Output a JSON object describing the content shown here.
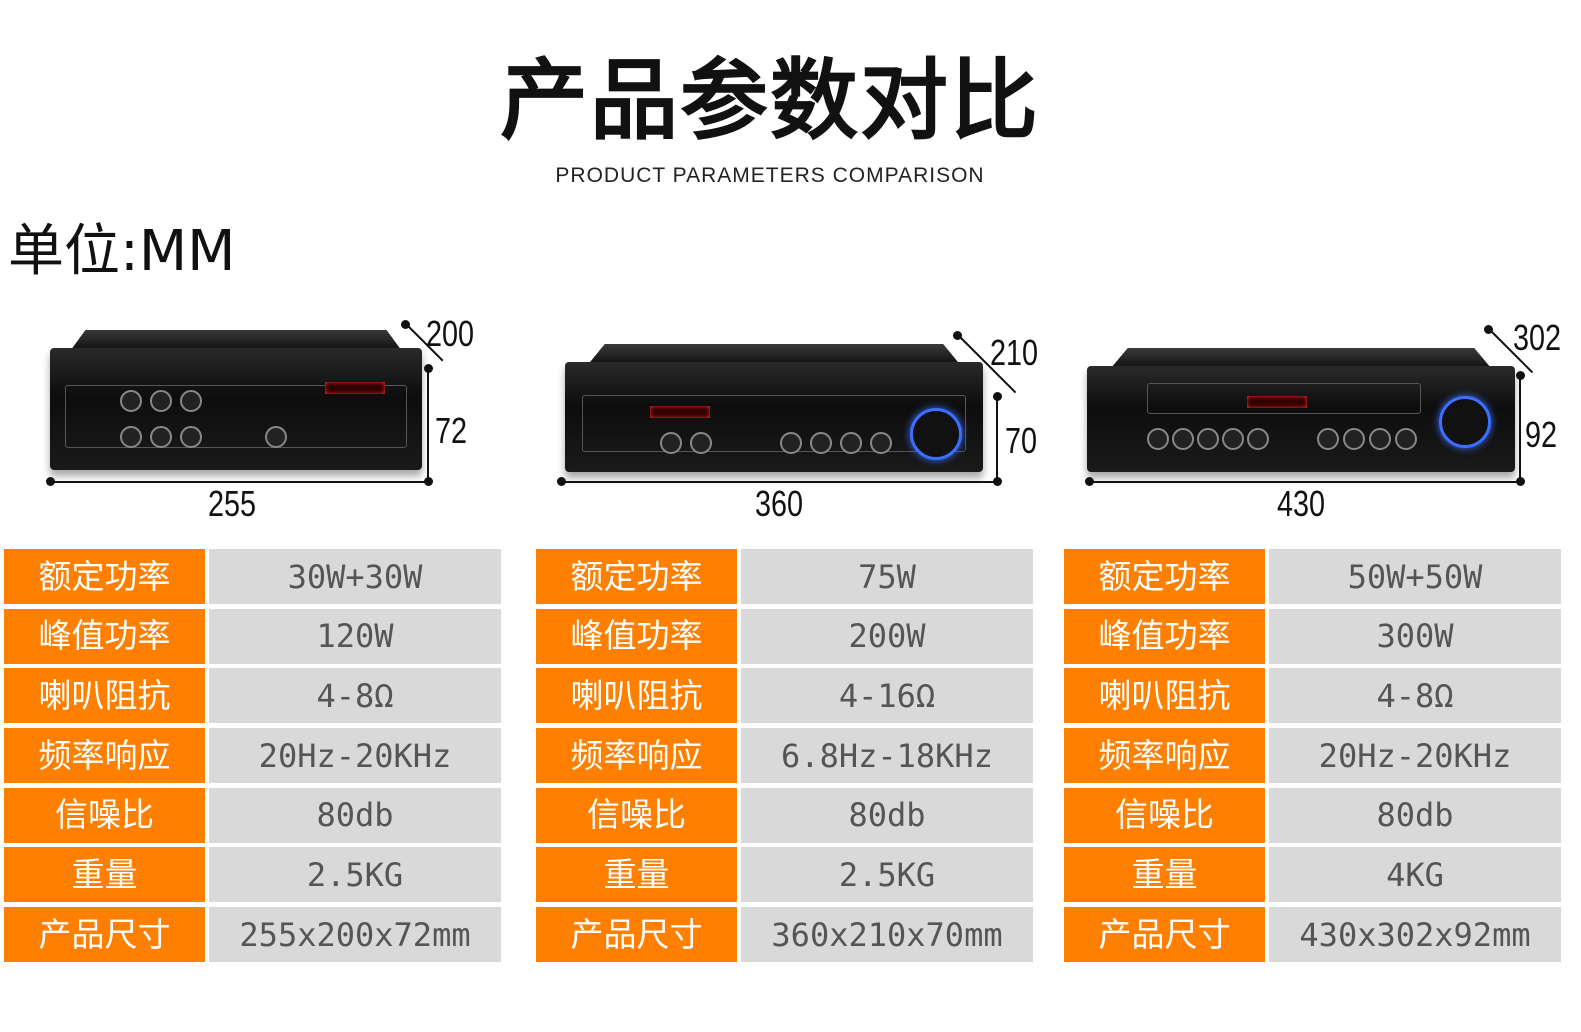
{
  "header": {
    "title": "产品参数对比",
    "subtitle": "PRODUCT PARAMETERS COMPARISON",
    "unit": "单位:MM"
  },
  "colors": {
    "label_bg": "#ff7f00",
    "value_bg": "#d9d9d9",
    "knob_ring": "#3a6fff"
  },
  "labels": [
    "额定功率",
    "峰值功率",
    "喇叭阻抗",
    "频率响应",
    "信噪比",
    "重量",
    "产品尺寸"
  ],
  "products": [
    {
      "dims": {
        "depth": "200",
        "height": "72",
        "width": "255"
      },
      "values": [
        "30W+30W",
        "120W",
        "4-8Ω",
        "20Hz-20KHz",
        "80db",
        "2.5KG",
        "255x200x72mm"
      ]
    },
    {
      "dims": {
        "depth": "210",
        "height": "70",
        "width": "360"
      },
      "values": [
        "75W",
        "200W",
        "4-16Ω",
        "6.8Hz-18KHz",
        "80db",
        "2.5KG",
        "360x210x70mm"
      ]
    },
    {
      "dims": {
        "depth": "302",
        "height": "92",
        "width": "430"
      },
      "values": [
        "50W+50W",
        "300W",
        "4-8Ω",
        "20Hz-20KHz",
        "80db",
        "4KG",
        "430x302x92mm"
      ]
    }
  ]
}
